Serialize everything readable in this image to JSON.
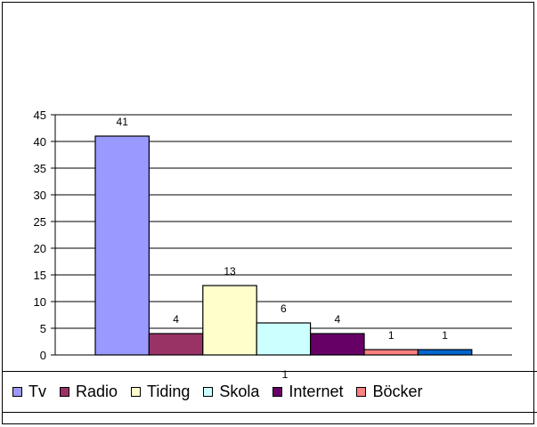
{
  "chart_data": {
    "type": "bar",
    "title": "",
    "xlabel": "",
    "ylabel": "",
    "ylim": [
      0,
      45
    ],
    "yticks": [
      0,
      5,
      10,
      15,
      20,
      25,
      30,
      35,
      40,
      45
    ],
    "grid": true,
    "legend_placement": "bottom",
    "series": [
      {
        "name": "Tv",
        "values": [
          41
        ],
        "label": "41",
        "color": "#9999FF"
      },
      {
        "name": "Radio",
        "values": [
          4
        ],
        "label": "4",
        "color": "#993366"
      },
      {
        "name": "Tiding",
        "values": [
          13
        ],
        "label": "13",
        "color": "#FFFFCC"
      },
      {
        "name": "Skola",
        "values": [
          6
        ],
        "label": "6",
        "color": "#CCFFFF"
      },
      {
        "name": "Internet",
        "values": [
          4
        ],
        "label": "4",
        "color": "#660066"
      },
      {
        "name": "Böcker",
        "values": [
          1
        ],
        "label": "1",
        "color": "#FF8080"
      },
      {
        "name": "",
        "values": [
          1
        ],
        "label": "1",
        "color": "#0066CC"
      }
    ],
    "stray_label": "1"
  }
}
